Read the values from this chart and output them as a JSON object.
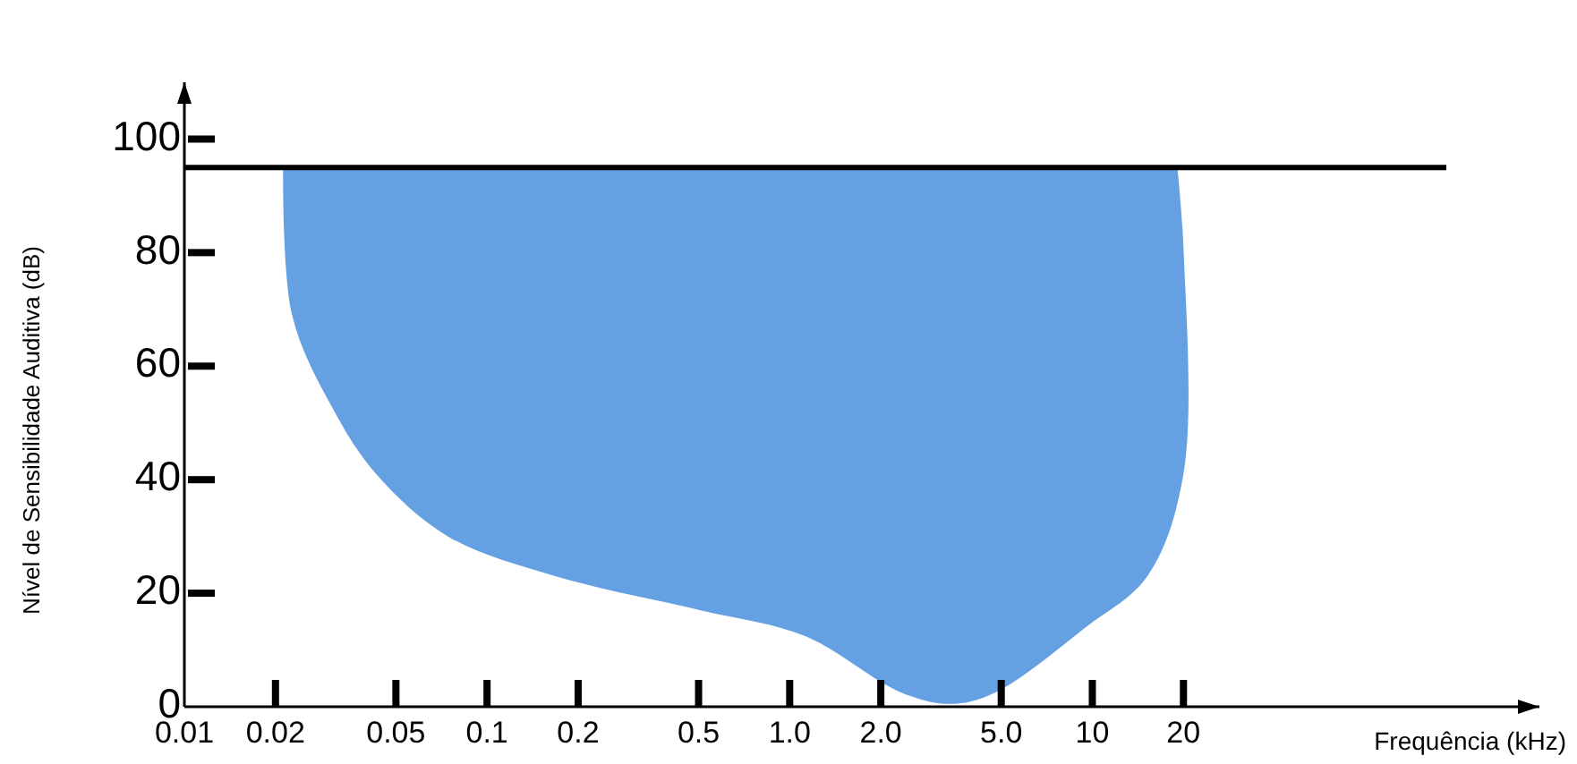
{
  "chart_data": {
    "type": "area",
    "xlabel": "Frequência (kHz)",
    "ylabel": "Nível de Sensibilidade Auditiva (dB)",
    "x": [
      0.0212,
      0.0227,
      0.0306,
      0.043,
      0.0743,
      0.168,
      0.508,
      1.12,
      2.34,
      3.39,
      4.77,
      9.5,
      15.2,
      20,
      20,
      19.1
    ],
    "series": [
      {
        "color": "#64a0e2",
        "values": [
          95,
          69,
          53,
          41,
          30,
          23,
          17,
          12.5,
          2.5,
          0.5,
          2.5,
          14,
          23,
          41,
          81,
          95
        ]
      }
    ],
    "log": "x",
    "xlim": [
      0.01,
      300
    ],
    "ylim": [
      0,
      110
    ],
    "yticks": [
      0,
      20,
      40,
      60,
      80,
      100
    ],
    "xticks": [
      0.01,
      0.02,
      0.05,
      0.1,
      0.2,
      0.5,
      {
        "value": 1,
        "label": "1.0"
      },
      {
        "value": 2,
        "label": "2.0"
      },
      {
        "value": 5,
        "label": "5.0"
      },
      10,
      20
    ],
    "ref_lines": [
      {
        "axis": "y",
        "value": 95,
        "color": "#000000"
      }
    ],
    "grid": false
  }
}
